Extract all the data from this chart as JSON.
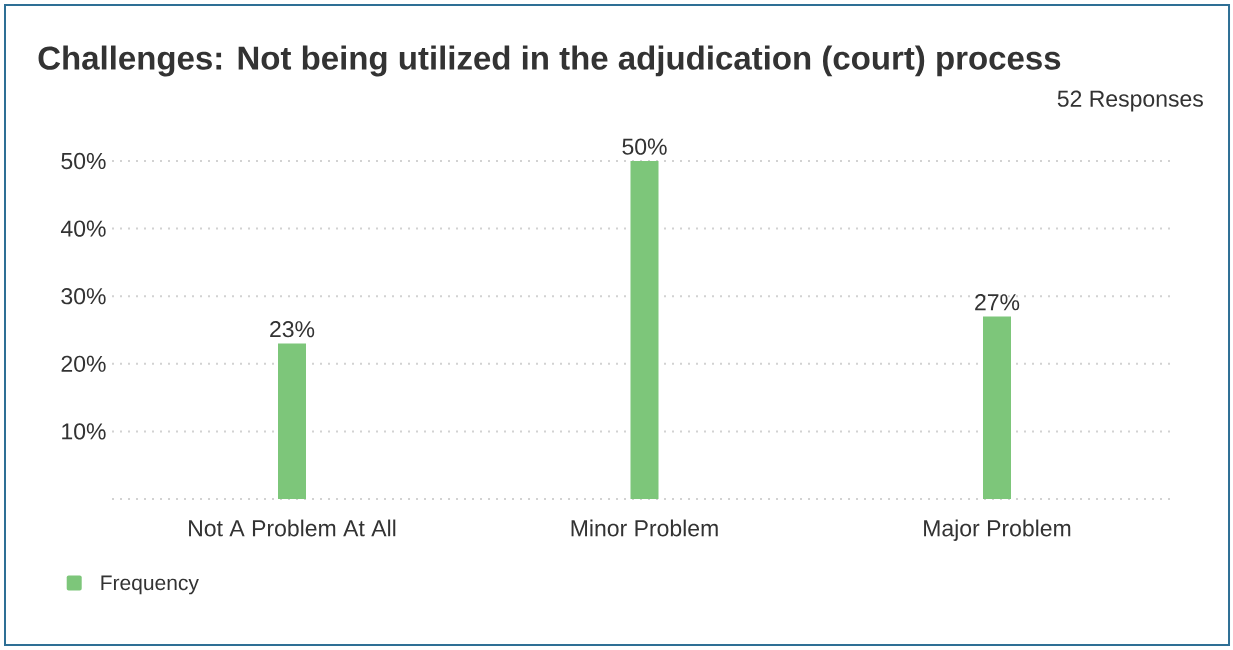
{
  "chart_data": {
    "type": "bar",
    "title": "Challenges: Not being utilized in the adjudication (court) process",
    "subtitle": "52 Responses",
    "categories": [
      "Not A Problem At All",
      "Minor Problem",
      "Major Problem"
    ],
    "series": [
      {
        "name": "Frequency",
        "color": "#7dc67a",
        "values": [
          23,
          50,
          27
        ],
        "value_labels": [
          "23%",
          "50%",
          "27%"
        ]
      }
    ],
    "ylim": [
      0,
      50
    ],
    "yticks": [
      {
        "value": 0,
        "label": null
      },
      {
        "value": 10,
        "label": "10%"
      },
      {
        "value": 20,
        "label": "20%"
      },
      {
        "value": 30,
        "label": "30%"
      },
      {
        "value": 40,
        "label": "40%"
      },
      {
        "value": 50,
        "label": "50%"
      }
    ],
    "grid": "y",
    "legend": "bottom left"
  }
}
